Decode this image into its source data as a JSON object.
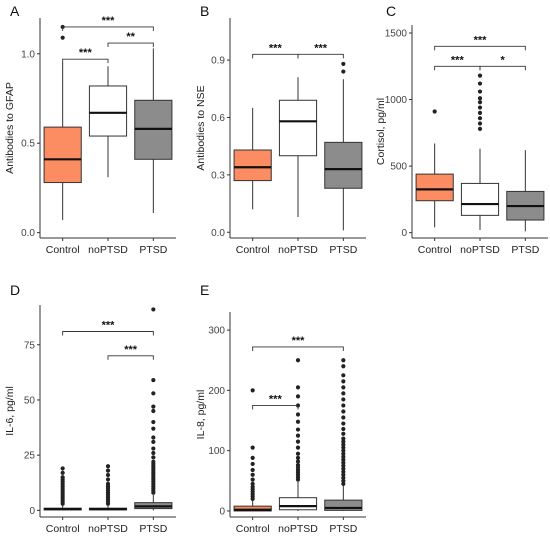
{
  "colors": {
    "Control": "#fc8d62",
    "noPTSD": "#ffffff",
    "PTSD": "#8c8c8c"
  },
  "chart_data": [
    {
      "type": "box",
      "panel": "A",
      "ylabel": "Antibodies to GFAP",
      "categories": [
        "Control",
        "noPTSD",
        "PTSD"
      ],
      "ylim": [
        -0.03,
        1.2
      ],
      "yticks": [
        0.0,
        0.5,
        1.0
      ],
      "ytick_labels": [
        "0.0",
        "0.5",
        "1.0"
      ],
      "boxes": [
        {
          "category": "Control",
          "whisker_low": 0.07,
          "q1": 0.28,
          "median": 0.41,
          "q3": 0.59,
          "whisker_high": 0.95,
          "outliers": [
            1.09,
            1.15
          ]
        },
        {
          "category": "noPTSD",
          "whisker_low": 0.31,
          "q1": 0.54,
          "median": 0.67,
          "q3": 0.82,
          "whisker_high": 0.93,
          "outliers": []
        },
        {
          "category": "PTSD",
          "whisker_low": 0.11,
          "q1": 0.41,
          "median": 0.58,
          "q3": 0.74,
          "whisker_high": 1.03,
          "outliers": []
        }
      ],
      "comparisons": [
        {
          "from": "Control",
          "to": "PTSD",
          "label": "***",
          "y": 1.15
        },
        {
          "from": "Control",
          "to": "noPTSD",
          "label": "***",
          "y": 0.97
        },
        {
          "from": "noPTSD",
          "to": "PTSD",
          "label": "**",
          "y": 1.06
        }
      ]
    },
    {
      "type": "box",
      "panel": "B",
      "ylabel": "Antibodies to NSE",
      "categories": [
        "Control",
        "noPTSD",
        "PTSD"
      ],
      "ylim": [
        -0.03,
        1.12
      ],
      "yticks": [
        0.0,
        0.3,
        0.6,
        0.9
      ],
      "ytick_labels": [
        "0.0",
        "0.3",
        "0.6",
        "0.9"
      ],
      "boxes": [
        {
          "category": "Control",
          "whisker_low": 0.12,
          "q1": 0.27,
          "median": 0.34,
          "q3": 0.43,
          "whisker_high": 0.65,
          "outliers": []
        },
        {
          "category": "noPTSD",
          "whisker_low": 0.08,
          "q1": 0.4,
          "median": 0.58,
          "q3": 0.69,
          "whisker_high": 0.81,
          "outliers": []
        },
        {
          "category": "PTSD",
          "whisker_low": 0.01,
          "q1": 0.23,
          "median": 0.33,
          "q3": 0.47,
          "whisker_high": 0.8,
          "outliers": [
            0.84,
            0.88
          ]
        }
      ],
      "comparisons": [
        {
          "from": "Control",
          "to": "noPTSD",
          "label": "***",
          "y": 0.93
        },
        {
          "from": "noPTSD",
          "to": "PTSD",
          "label": "***",
          "y": 0.93
        }
      ]
    },
    {
      "type": "box",
      "panel": "C",
      "ylabel": "Cortisol, pg/ml",
      "categories": [
        "Control",
        "noPTSD",
        "PTSD"
      ],
      "ylim": [
        -40,
        1560
      ],
      "yticks": [
        0,
        500,
        1000,
        1500
      ],
      "ytick_labels": [
        "0",
        "500",
        "1000",
        "1500"
      ],
      "boxes": [
        {
          "category": "Control",
          "whisker_low": 40,
          "q1": 240,
          "median": 325,
          "q3": 440,
          "whisker_high": 670,
          "outliers": [
            910
          ]
        },
        {
          "category": "noPTSD",
          "whisker_low": 20,
          "q1": 130,
          "median": 215,
          "q3": 370,
          "whisker_high": 630,
          "outliers": [
            780,
            820,
            860,
            900,
            940,
            980,
            1010,
            1060,
            1120,
            1180
          ]
        },
        {
          "category": "PTSD",
          "whisker_low": 10,
          "q1": 95,
          "median": 200,
          "q3": 310,
          "whisker_high": 620,
          "outliers": []
        }
      ],
      "comparisons": [
        {
          "from": "Control",
          "to": "PTSD",
          "label": "***",
          "y": 1400
        },
        {
          "from": "Control",
          "to": "noPTSD",
          "label": "***",
          "y": 1250
        },
        {
          "from": "noPTSD",
          "to": "PTSD",
          "label": "*",
          "y": 1250
        }
      ]
    },
    {
      "type": "box",
      "panel": "D",
      "ylabel": "IL-6, pg/ml",
      "categories": [
        "Control",
        "noPTSD",
        "PTSD"
      ],
      "ylim": [
        -3,
        93
      ],
      "yticks": [
        0,
        25,
        50,
        75
      ],
      "ytick_labels": [
        "0",
        "25",
        "50",
        "75"
      ],
      "boxes": [
        {
          "category": "Control",
          "whisker_low": 0,
          "q1": 0.2,
          "median": 0.6,
          "q3": 1.0,
          "whisker_high": 2.0,
          "outliers": [
            3,
            4,
            5,
            6,
            7,
            8,
            9,
            10,
            11,
            12,
            13,
            14,
            15,
            17,
            19
          ]
        },
        {
          "category": "noPTSD",
          "whisker_low": 0,
          "q1": 0.2,
          "median": 0.6,
          "q3": 1.0,
          "whisker_high": 2.0,
          "outliers": [
            3,
            4,
            5,
            6,
            7,
            8,
            9,
            10,
            11,
            12,
            14,
            16,
            18,
            20
          ]
        },
        {
          "category": "PTSD",
          "whisker_low": 0,
          "q1": 0.8,
          "median": 1.8,
          "q3": 3.5,
          "whisker_high": 7,
          "outliers": [
            8,
            9,
            10,
            11,
            12,
            13,
            14,
            15,
            16,
            17,
            18,
            19,
            20,
            21,
            22,
            24,
            26,
            28,
            31,
            33,
            37,
            40,
            45,
            47,
            53,
            59,
            91
          ]
        }
      ],
      "comparisons": [
        {
          "from": "Control",
          "to": "PTSD",
          "label": "***",
          "y": 81
        },
        {
          "from": "noPTSD",
          "to": "PTSD",
          "label": "***",
          "y": 70
        }
      ]
    },
    {
      "type": "box",
      "panel": "E",
      "ylabel": "IL-8, pg/ml",
      "categories": [
        "Control",
        "noPTSD",
        "PTSD"
      ],
      "ylim": [
        -10,
        330
      ],
      "yticks": [
        0,
        100,
        200,
        300
      ],
      "ytick_labels": [
        "0",
        "100",
        "200",
        "300"
      ],
      "boxes": [
        {
          "category": "Control",
          "whisker_low": 0,
          "q1": 0,
          "median": 2,
          "q3": 8,
          "whisker_high": 18,
          "outliers": [
            20,
            24,
            28,
            32,
            36,
            40,
            45,
            52,
            60,
            68,
            78,
            88,
            105,
            200
          ]
        },
        {
          "category": "noPTSD",
          "whisker_low": 0,
          "q1": 2,
          "median": 8,
          "q3": 22,
          "whisker_high": 48,
          "outliers": [
            52,
            56,
            60,
            64,
            68,
            72,
            76,
            82,
            88,
            95,
            105,
            115,
            125,
            135,
            148,
            160,
            175,
            190,
            205,
            250
          ]
        },
        {
          "category": "PTSD",
          "whisker_low": 0,
          "q1": 1,
          "median": 5,
          "q3": 18,
          "whisker_high": 42,
          "outliers": [
            45,
            50,
            55,
            60,
            65,
            70,
            75,
            80,
            85,
            90,
            95,
            100,
            105,
            110,
            115,
            120,
            128,
            136,
            145,
            155,
            165,
            175,
            185,
            195,
            205,
            215,
            225,
            240,
            250
          ]
        }
      ],
      "comparisons": [
        {
          "from": "Control",
          "to": "PTSD",
          "label": "***",
          "y": 272
        },
        {
          "from": "Control",
          "to": "noPTSD",
          "label": "***",
          "y": 175
        }
      ]
    }
  ]
}
